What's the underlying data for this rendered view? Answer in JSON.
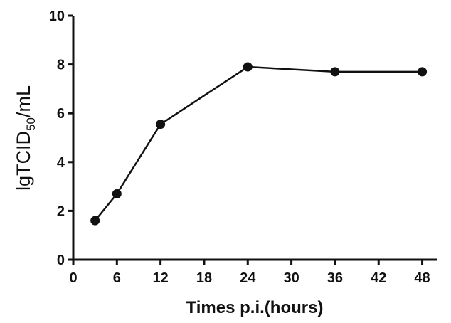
{
  "chart_data": {
    "type": "line",
    "x": [
      3,
      6,
      12,
      24,
      36,
      48
    ],
    "series": [
      {
        "values": [
          1.6,
          2.7,
          5.55,
          7.9,
          7.7,
          7.7
        ],
        "color": "#111111"
      }
    ],
    "xlabel": "Times p.i.(hours)",
    "ylabel": {
      "main": "lgTCID",
      "sub": "50",
      "unit": "/mL"
    },
    "xlim": [
      0,
      50
    ],
    "ylim": [
      0,
      10
    ],
    "xticks": [
      "0",
      "6",
      "12",
      "18",
      "24",
      "30",
      "36",
      "42",
      "48"
    ],
    "yticks": [
      "0",
      "2",
      "4",
      "6",
      "8",
      "10"
    ],
    "grid": false
  }
}
